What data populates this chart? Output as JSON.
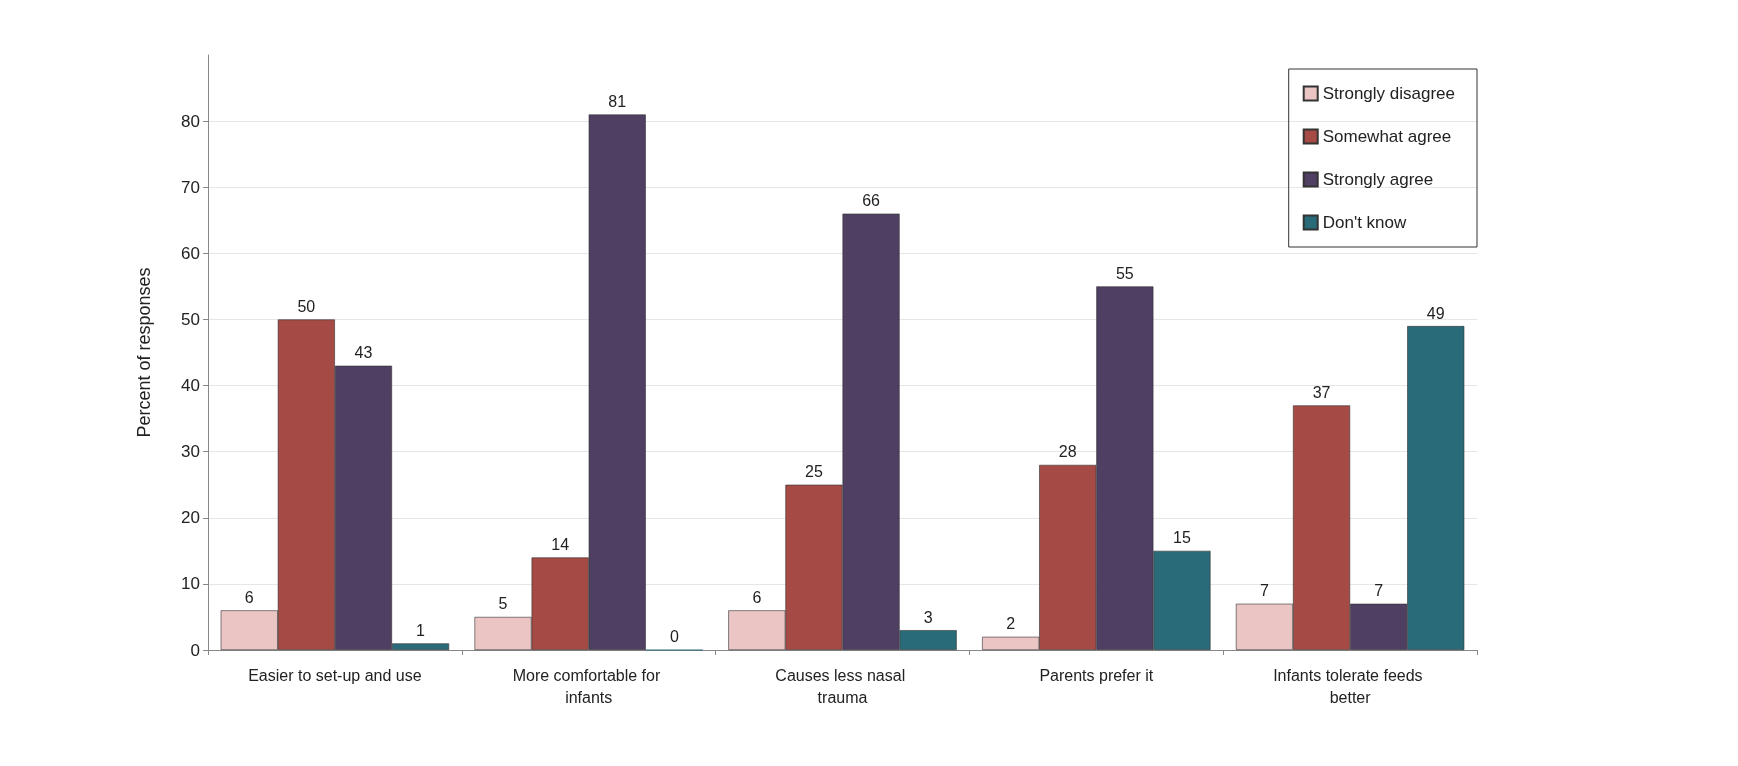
{
  "chart_data": {
    "type": "bar",
    "ylabel": "Percent of responses",
    "categories": [
      "Easier to set-up and use",
      "More comfortable for infants",
      "Causes less nasal trauma",
      "Parents prefer it",
      "Infants tolerate feeds better"
    ],
    "series": [
      {
        "name": "Strongly disagree",
        "color": "#ebc4c4",
        "values": [
          6,
          5,
          6,
          2,
          7
        ]
      },
      {
        "name": "Somewhat agree",
        "color": "#a54a44",
        "values": [
          50,
          14,
          25,
          28,
          37
        ]
      },
      {
        "name": "Strongly agree",
        "color": "#4f3f63",
        "values": [
          43,
          81,
          66,
          55,
          7
        ]
      },
      {
        "name": "Don't know",
        "color": "#2a6b7a",
        "values": [
          1,
          0,
          3,
          15,
          49
        ]
      }
    ],
    "ylim": [
      0,
      90
    ],
    "yticks": [
      0,
      10,
      20,
      30,
      40,
      50,
      60,
      70,
      80
    ],
    "grid": "y",
    "legend": "top right",
    "data_labels": true
  }
}
